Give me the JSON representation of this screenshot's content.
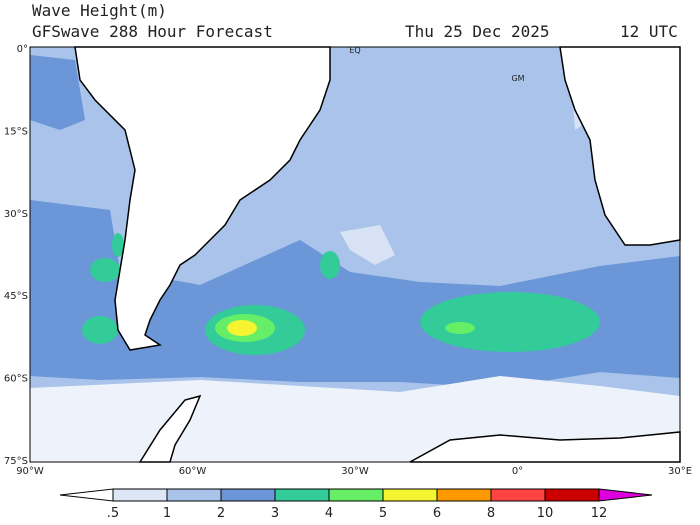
{
  "header": {
    "title": "Wave Height(m)",
    "subtitle": "GFSwave 288 Hour Forecast",
    "date": "Thu 25 Dec 2025",
    "time": "12 UTC"
  },
  "map": {
    "lat_labels": [
      "0°",
      "15°S",
      "30°S",
      "45°S",
      "60°S",
      "75°S"
    ],
    "lon_labels": [
      "90°W",
      "60°W",
      "30°W",
      "0°",
      "30°E"
    ],
    "place_labels": [
      "EQ",
      "GM"
    ]
  },
  "colorbar": {
    "labels": [
      ".5",
      "1",
      "2",
      "3",
      "4",
      "5",
      "6",
      "8",
      "10",
      "12"
    ]
  }
}
